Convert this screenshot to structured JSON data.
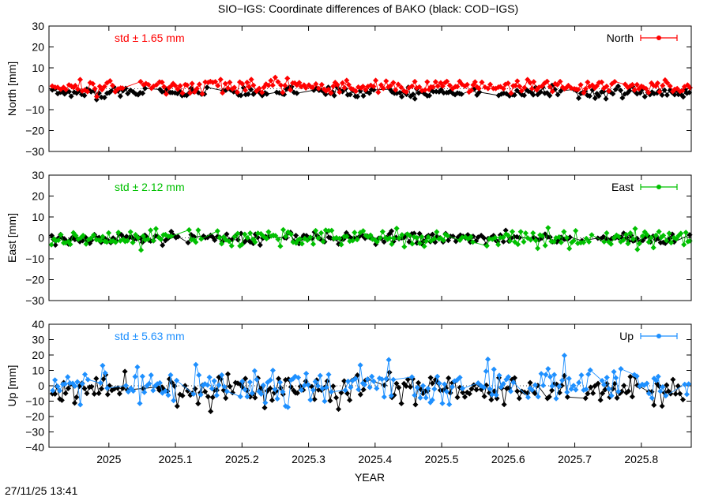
{
  "title": "SIO−IGS: Coordinate differences of BAKO (black: COD−IGS)",
  "timestamp": "27/11/25 13:41",
  "chart_data": [
    {
      "type": "line",
      "panel": "north",
      "ylabel": "North [mm]",
      "ylim": [
        -30,
        30
      ],
      "yticks": [
        "30",
        "20",
        "10",
        "0",
        "−10",
        "−20",
        "−30"
      ],
      "xlim": [
        2024.91,
        2025.875
      ],
      "legend": "North",
      "legend_position": "top-right",
      "std_label": "std ± 1.65 mm",
      "color": "#ff0000",
      "black_color": "#000000",
      "series": [
        {
          "name": "North",
          "mean": 1.0,
          "amp": 1.65
        },
        {
          "name": "black",
          "mean": -1.8,
          "amp": 1.3
        }
      ]
    },
    {
      "type": "line",
      "panel": "east",
      "ylabel": "East [mm]",
      "ylim": [
        -30,
        30
      ],
      "yticks": [
        "30",
        "20",
        "10",
        "0",
        "−10",
        "−20",
        "−30"
      ],
      "xlim": [
        2024.91,
        2025.875
      ],
      "legend": "East",
      "legend_position": "top-right",
      "std_label": "std ± 2.12 mm",
      "color": "#00c000",
      "black_color": "#000000",
      "series": [
        {
          "name": "East",
          "mean": 0.0,
          "amp": 2.12
        },
        {
          "name": "black",
          "mean": -0.3,
          "amp": 1.4
        }
      ]
    },
    {
      "type": "line",
      "panel": "up",
      "ylabel": "Up [mm]",
      "ylim": [
        -40,
        40
      ],
      "yticks": [
        "40",
        "30",
        "20",
        "10",
        "0",
        "−10",
        "−20",
        "−30",
        "−40"
      ],
      "xlim": [
        2024.91,
        2025.875
      ],
      "legend": "Up",
      "legend_position": "top-right",
      "std_label": "std ± 5.63 mm",
      "color": "#1e90ff",
      "black_color": "#000000",
      "series": [
        {
          "name": "Up",
          "mean": 0.5,
          "amp": 5.63
        },
        {
          "name": "black",
          "mean": -2.5,
          "amp": 4.5
        }
      ]
    }
  ],
  "x_axis": {
    "label": "YEAR",
    "ticks": [
      {
        "value": 2025.0,
        "label": "2025"
      },
      {
        "value": 2025.1,
        "label": "2025.1"
      },
      {
        "value": 2025.2,
        "label": "2025.2"
      },
      {
        "value": 2025.3,
        "label": "2025.3"
      },
      {
        "value": 2025.4,
        "label": "2025.4"
      },
      {
        "value": 2025.5,
        "label": "2025.5"
      },
      {
        "value": 2025.6,
        "label": "2025.6"
      },
      {
        "value": 2025.7,
        "label": "2025.7"
      },
      {
        "value": 2025.8,
        "label": "2025.8"
      }
    ]
  }
}
